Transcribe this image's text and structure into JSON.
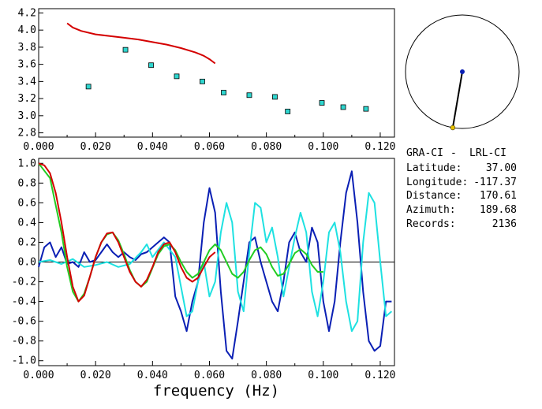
{
  "colors": {
    "red": "#d40000",
    "green": "#22cc22",
    "blue": "#0a1fb4",
    "cyan": "#1ee1e1",
    "marker": "#2fd6cf",
    "axis": "#000000",
    "station": "#e6c000",
    "epicenter": "#0a1fb4"
  },
  "info": {
    "title_a": "GRA-CI",
    "title_sep": "-",
    "title_b": "LRL-CI",
    "rows": [
      {
        "label": "Latitude:",
        "value": "37.00"
      },
      {
        "label": "Longitude:",
        "value": "-117.37"
      },
      {
        "label": "Distance:",
        "value": "170.61"
      },
      {
        "label": "Azimuth:",
        "value": "189.68"
      },
      {
        "label": "Records:",
        "value": "2136"
      }
    ]
  },
  "map": {
    "azimuth_deg": 189.68
  },
  "chart_data": [
    {
      "type": "scatter",
      "title": "",
      "xlabel": "",
      "ylabel": "",
      "xlim": [
        0.0,
        0.125
      ],
      "ylim": [
        2.75,
        4.25
      ],
      "x_ticks": [
        "0.000",
        "0.020",
        "0.040",
        "0.060",
        "0.080",
        "0.100",
        "0.120"
      ],
      "y_ticks": [
        "4.2",
        "4.0",
        "3.8",
        "3.6",
        "3.4",
        "3.2",
        "3.0",
        "2.8"
      ],
      "series": [
        {
          "name": "model",
          "kind": "line",
          "color": "red",
          "x": [
            0.01,
            0.012,
            0.015,
            0.02,
            0.025,
            0.03,
            0.035,
            0.04,
            0.045,
            0.05,
            0.055,
            0.058,
            0.06,
            0.062
          ],
          "y": [
            4.08,
            4.03,
            3.99,
            3.95,
            3.93,
            3.91,
            3.89,
            3.86,
            3.83,
            3.79,
            3.74,
            3.7,
            3.66,
            3.61
          ]
        },
        {
          "name": "measured",
          "kind": "markers",
          "color": "marker",
          "x": [
            0.0175,
            0.0305,
            0.0395,
            0.0485,
            0.0575,
            0.065,
            0.074,
            0.083,
            0.0875,
            0.0995,
            0.107,
            0.115
          ],
          "y": [
            3.34,
            3.77,
            3.59,
            3.46,
            3.4,
            3.27,
            3.24,
            3.22,
            3.05,
            3.15,
            3.1,
            3.08
          ]
        }
      ]
    },
    {
      "type": "line",
      "title": "",
      "xlabel": "frequency (Hz)",
      "ylabel": "",
      "xlim": [
        0.0,
        0.125
      ],
      "ylim": [
        -1.05,
        1.05
      ],
      "x_ticks": [
        "0.000",
        "0.020",
        "0.040",
        "0.060",
        "0.080",
        "0.100",
        "0.120"
      ],
      "y_ticks": [
        "1.0",
        "0.8",
        "0.6",
        "0.4",
        "0.2",
        "0.0",
        "-0.2",
        "-0.4",
        "-0.6",
        "-0.8",
        "-1.0"
      ],
      "series": [
        {
          "name": "blue",
          "color": "blue",
          "x": [
            0.0,
            0.002,
            0.004,
            0.006,
            0.008,
            0.01,
            0.012,
            0.014,
            0.016,
            0.018,
            0.02,
            0.022,
            0.024,
            0.026,
            0.028,
            0.03,
            0.032,
            0.034,
            0.036,
            0.038,
            0.04,
            0.042,
            0.044,
            0.046,
            0.048,
            0.05,
            0.052,
            0.054,
            0.056,
            0.058,
            0.06,
            0.062,
            0.064,
            0.066,
            0.068,
            0.07,
            0.072,
            0.074,
            0.076,
            0.078,
            0.08,
            0.082,
            0.084,
            0.086,
            0.088,
            0.09,
            0.092,
            0.094,
            0.096,
            0.098,
            0.1,
            0.102,
            0.104,
            0.106,
            0.108,
            0.11,
            0.112,
            0.114,
            0.116,
            0.118,
            0.12,
            0.122,
            0.124
          ],
          "y": [
            -0.05,
            0.15,
            0.2,
            0.05,
            0.15,
            -0.02,
            0.0,
            -0.05,
            0.1,
            0.0,
            0.02,
            0.1,
            0.18,
            0.1,
            0.05,
            0.1,
            0.05,
            0.02,
            0.08,
            0.1,
            0.15,
            0.2,
            0.25,
            0.2,
            -0.35,
            -0.5,
            -0.7,
            -0.4,
            -0.2,
            0.4,
            0.75,
            0.5,
            -0.3,
            -0.9,
            -0.98,
            -0.6,
            -0.2,
            0.2,
            0.25,
            0.0,
            -0.2,
            -0.4,
            -0.5,
            -0.2,
            0.2,
            0.3,
            0.1,
            0.0,
            0.35,
            0.2,
            -0.4,
            -0.7,
            -0.4,
            0.2,
            0.7,
            0.92,
            0.4,
            -0.3,
            -0.8,
            -0.9,
            -0.85,
            -0.4,
            -0.4
          ]
        },
        {
          "name": "cyan",
          "color": "cyan",
          "x": [
            0.0,
            0.004,
            0.008,
            0.012,
            0.016,
            0.02,
            0.024,
            0.028,
            0.032,
            0.036,
            0.038,
            0.04,
            0.044,
            0.048,
            0.05,
            0.052,
            0.054,
            0.056,
            0.058,
            0.06,
            0.062,
            0.064,
            0.066,
            0.068,
            0.07,
            0.072,
            0.074,
            0.076,
            0.078,
            0.08,
            0.082,
            0.084,
            0.086,
            0.088,
            0.09,
            0.092,
            0.094,
            0.096,
            0.098,
            0.1,
            0.102,
            0.104,
            0.106,
            0.108,
            0.11,
            0.112,
            0.114,
            0.116,
            0.118,
            0.12,
            0.122,
            0.124
          ],
          "y": [
            0.0,
            0.02,
            -0.02,
            0.03,
            -0.05,
            -0.03,
            0.0,
            -0.05,
            -0.02,
            0.1,
            0.18,
            0.05,
            0.2,
            0.05,
            -0.25,
            -0.55,
            -0.5,
            -0.2,
            0.0,
            -0.35,
            -0.2,
            0.3,
            0.6,
            0.4,
            -0.3,
            -0.5,
            0.1,
            0.6,
            0.55,
            0.2,
            0.35,
            0.05,
            -0.35,
            -0.05,
            0.25,
            0.5,
            0.3,
            -0.3,
            -0.55,
            -0.2,
            0.3,
            0.4,
            0.1,
            -0.4,
            -0.7,
            -0.6,
            0.2,
            0.7,
            0.6,
            0.0,
            -0.55,
            -0.5
          ]
        },
        {
          "name": "green",
          "color": "green",
          "x": [
            0.0,
            0.004,
            0.008,
            0.01,
            0.012,
            0.014,
            0.016,
            0.018,
            0.02,
            0.022,
            0.024,
            0.026,
            0.028,
            0.03,
            0.032,
            0.034,
            0.036,
            0.038,
            0.04,
            0.042,
            0.044,
            0.046,
            0.048,
            0.05,
            0.052,
            0.054,
            0.056,
            0.058,
            0.06,
            0.062,
            0.064,
            0.066,
            0.068,
            0.07,
            0.072,
            0.074,
            0.076,
            0.078,
            0.08,
            0.082,
            0.084,
            0.086,
            0.088,
            0.09,
            0.092,
            0.094,
            0.096,
            0.098,
            0.1
          ],
          "y": [
            1.0,
            0.85,
            0.3,
            -0.05,
            -0.3,
            -0.4,
            -0.32,
            -0.15,
            0.05,
            0.2,
            0.28,
            0.3,
            0.22,
            0.08,
            -0.08,
            -0.2,
            -0.25,
            -0.2,
            -0.06,
            0.08,
            0.16,
            0.18,
            0.12,
            0.0,
            -0.1,
            -0.16,
            -0.12,
            0.0,
            0.12,
            0.18,
            0.12,
            0.0,
            -0.12,
            -0.16,
            -0.1,
            0.02,
            0.12,
            0.15,
            0.08,
            -0.05,
            -0.14,
            -0.12,
            -0.02,
            0.09,
            0.13,
            0.08,
            -0.03,
            -0.1,
            -0.1
          ]
        },
        {
          "name": "red",
          "color": "red",
          "x": [
            0.0,
            0.002,
            0.004,
            0.006,
            0.008,
            0.01,
            0.012,
            0.014,
            0.016,
            0.018,
            0.02,
            0.022,
            0.024,
            0.026,
            0.028,
            0.03,
            0.032,
            0.034,
            0.036,
            0.038,
            0.04,
            0.042,
            0.044,
            0.046,
            0.048,
            0.05,
            0.052,
            0.054,
            0.056,
            0.058,
            0.06,
            0.062
          ],
          "y": [
            1.0,
            0.98,
            0.9,
            0.7,
            0.4,
            0.05,
            -0.25,
            -0.4,
            -0.34,
            -0.15,
            0.05,
            0.2,
            0.29,
            0.3,
            0.2,
            0.05,
            -0.1,
            -0.2,
            -0.25,
            -0.18,
            -0.05,
            0.1,
            0.18,
            0.2,
            0.1,
            -0.05,
            -0.16,
            -0.2,
            -0.16,
            -0.05,
            0.05,
            0.1
          ]
        }
      ]
    }
  ]
}
